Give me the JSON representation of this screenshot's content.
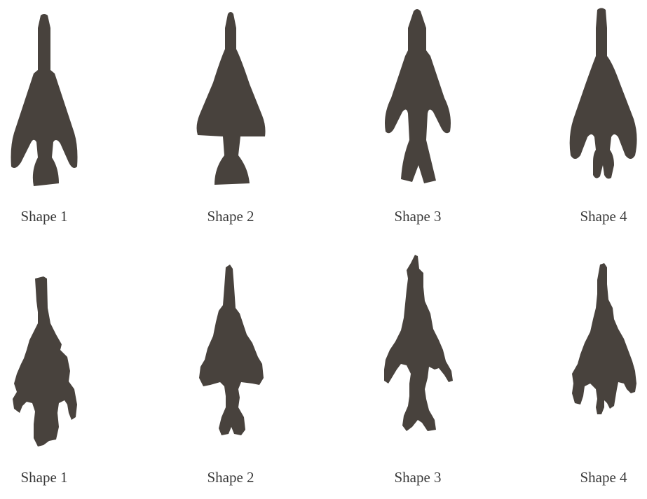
{
  "colors": {
    "shape_fill": "#48423d",
    "label_text": "#3a3a3a",
    "background": "#ffffff"
  },
  "rows": [
    {
      "style": "smooth",
      "items": [
        {
          "label": "Shape 1",
          "icon": "arrowhead-barbed-stem-icon"
        },
        {
          "label": "Shape 2",
          "icon": "arrowhead-triangular-stem-icon"
        },
        {
          "label": "Shape 3",
          "icon": "arrowhead-forked-stem-icon"
        },
        {
          "label": "Shape 4",
          "icon": "arrowhead-three-prong-icon"
        }
      ]
    },
    {
      "style": "rough",
      "items": [
        {
          "label": "Shape 1",
          "icon": "rough-arrowhead-barbed-icon"
        },
        {
          "label": "Shape 2",
          "icon": "rough-arrowhead-triangular-icon"
        },
        {
          "label": "Shape 3",
          "icon": "rough-arrowhead-forked-icon"
        },
        {
          "label": "Shape 4",
          "icon": "rough-arrowhead-three-prong-icon"
        }
      ]
    }
  ]
}
